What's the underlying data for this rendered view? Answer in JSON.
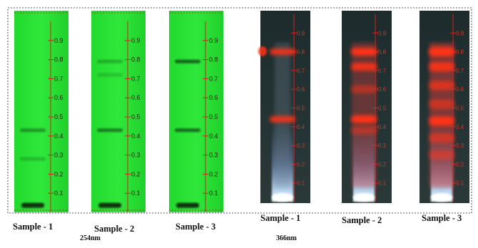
{
  "colors": {
    "plate_254": "#2fe83a",
    "plate_366": "#243434",
    "ruler": "#d42020",
    "fluor_red": "#ff3012",
    "fluor_blue": "#c8e4ff"
  },
  "ticks": [
    "0.9",
    "0.8",
    "0.7",
    "0.6",
    "0.5",
    "0.4",
    "0.3",
    "0.2",
    "0.1"
  ],
  "panel_254": {
    "wavelength": "254nm",
    "plates": [
      {
        "caption": "Sample - 1",
        "bands": [
          {
            "rf": 0.43,
            "strength": 0.45
          },
          {
            "rf": 0.28,
            "strength": 0.25
          },
          {
            "rf": 0.02,
            "strength": 0.9
          }
        ]
      },
      {
        "caption": "Sample - 2",
        "bands": [
          {
            "rf": 0.79,
            "strength": 0.3
          },
          {
            "rf": 0.72,
            "strength": 0.2
          },
          {
            "rf": 0.43,
            "strength": 0.6
          },
          {
            "rf": 0.02,
            "strength": 0.9
          }
        ]
      },
      {
        "caption": "Sample - 3",
        "bands": [
          {
            "rf": 0.79,
            "strength": 0.75
          },
          {
            "rf": 0.43,
            "strength": 0.7
          },
          {
            "rf": 0.02,
            "strength": 0.9
          }
        ]
      }
    ]
  },
  "panel_366": {
    "wavelength": "366nm",
    "plates": [
      {
        "caption": "Sample - 1",
        "bands": [
          {
            "rf": 0.8,
            "strength": 0.9
          },
          {
            "rf": 0.44,
            "strength": 0.9
          }
        ]
      },
      {
        "caption": "Sample - 2",
        "bands": [
          {
            "rf": 0.8,
            "strength": 1.0
          },
          {
            "rf": 0.72,
            "strength": 0.9
          },
          {
            "rf": 0.6,
            "strength": 0.5
          },
          {
            "rf": 0.44,
            "strength": 1.0
          },
          {
            "rf": 0.38,
            "strength": 0.5
          }
        ]
      },
      {
        "caption": "Sample - 3",
        "bands": [
          {
            "rf": 0.8,
            "strength": 1.0
          },
          {
            "rf": 0.72,
            "strength": 0.9
          },
          {
            "rf": 0.62,
            "strength": 0.7
          },
          {
            "rf": 0.52,
            "strength": 0.6
          },
          {
            "rf": 0.43,
            "strength": 1.0
          },
          {
            "rf": 0.34,
            "strength": 0.6
          },
          {
            "rf": 0.25,
            "strength": 0.5
          }
        ]
      }
    ]
  }
}
